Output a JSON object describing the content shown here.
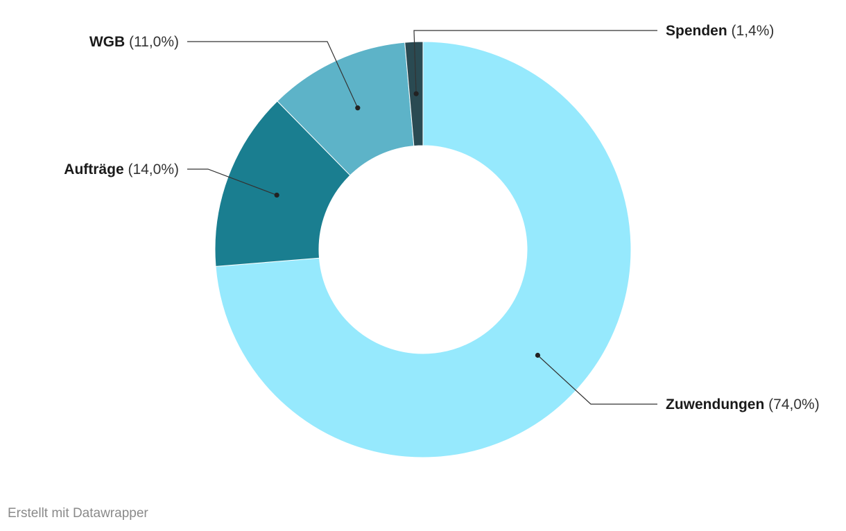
{
  "chart_data": {
    "type": "pie",
    "variant": "donut",
    "slices": [
      {
        "name": "Zuwendungen",
        "value": 74.0,
        "value_label": "(74,0%)",
        "color": "#96e9fd",
        "label_side": "right"
      },
      {
        "name": "Aufträge",
        "value": 14.0,
        "value_label": "(14,0%)",
        "color": "#1a7e90",
        "label_side": "left"
      },
      {
        "name": "WGB",
        "value": 11.0,
        "value_label": "(11,0%)",
        "color": "#5db3c8",
        "label_side": "left"
      },
      {
        "name": "Spenden",
        "value": 1.4,
        "value_label": "(1,4%)",
        "color": "#2a4a52",
        "label_side": "right"
      }
    ],
    "unit": "%",
    "legend": "none",
    "labels": "outside-with-leader-lines"
  },
  "footer": {
    "credit": "Erstellt mit Datawrapper"
  }
}
